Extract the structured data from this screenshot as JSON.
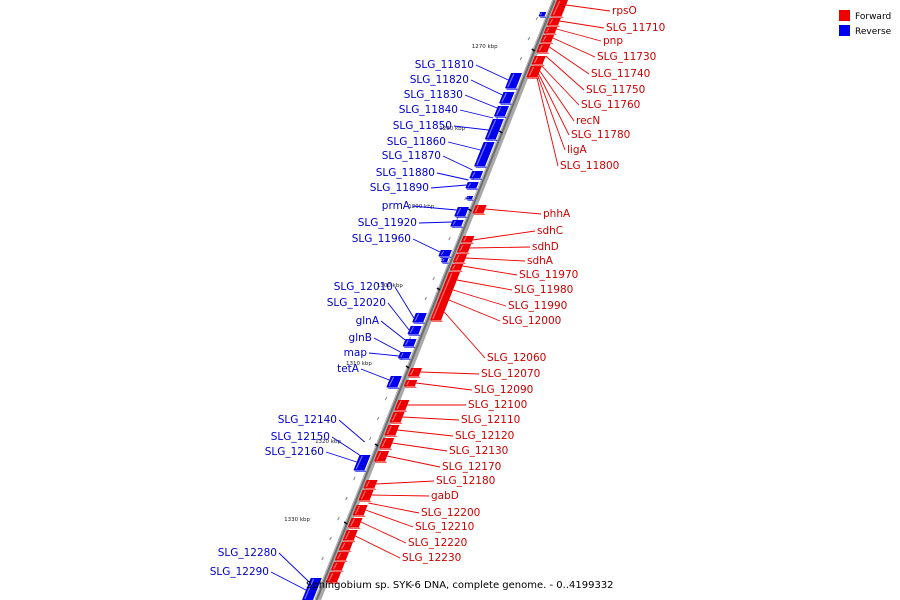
{
  "caption": "Sphingobium sp. SYK-6 DNA, complete genome. - 0..4199332",
  "legend": [
    {
      "label": "Forward",
      "color": "#ee0000"
    },
    {
      "label": "Reverse",
      "color": "#0000ee"
    }
  ],
  "kbp_ticks": [
    "1270 kbp",
    "1280 kbp",
    "1290 kbp",
    "1300 kbp",
    "1310 kbp",
    "1320 kbp",
    "1330 kbp"
  ],
  "forward_genes": [
    "rpsO",
    "SLG_11710",
    "pnp",
    "SLG_11730",
    "SLG_11740",
    "SLG_11750",
    "SLG_11760",
    "recN",
    "SLG_11780",
    "ligA",
    "SLG_11800",
    "phhA",
    "sdhC",
    "sdhD",
    "sdhA",
    "SLG_11970",
    "SLG_11980",
    "SLG_11990",
    "SLG_12000",
    "SLG_12060",
    "SLG_12070",
    "SLG_12090",
    "SLG_12100",
    "SLG_12110",
    "SLG_12120",
    "SLG_12130",
    "SLG_12170",
    "SLG_12180",
    "gabD",
    "SLG_12200",
    "SLG_12210",
    "SLG_12220",
    "SLG_12230"
  ],
  "reverse_genes": [
    "SLG_11810",
    "SLG_11820",
    "SLG_11830",
    "SLG_11840",
    "SLG_11850",
    "SLG_11860",
    "SLG_11870",
    "SLG_11880",
    "SLG_11890",
    "prmA",
    "SLG_11920",
    "SLG_11960",
    "SLG_12010",
    "SLG_12020",
    "glnA",
    "glnB",
    "map",
    "tetA",
    "SLG_12140",
    "SLG_12150",
    "SLG_12160",
    "SLG_12280",
    "SLG_12290"
  ]
}
